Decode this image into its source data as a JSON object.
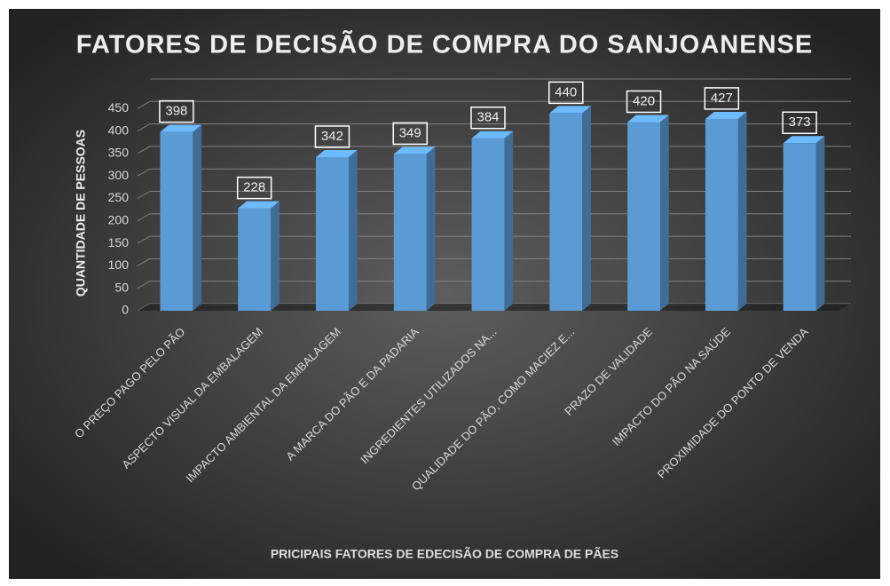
{
  "chart_data": {
    "type": "bar3d",
    "title": "FATORES DE DECISÃO DE COMPRA DO SANJOANENSE",
    "x_label": "PRICIPAIS FATORES DE EDECISÃO DE COMPRA DE PÃES",
    "y_label": "QUANTIDADE DE PESSOAS",
    "categories": [
      "O PREÇO PAGO PELO PÃO",
      "ASPECTO VISUAL DA EMBALAGEM",
      "IMPACTO AMBIENTAL DA EMBALAGEM",
      "A MARCA DO PÃO E DA PADARIA",
      "INGREDIENTES UTILIZADOS NA...",
      "QUALIDADE DO PÃO, COMO MACIEZ E...",
      "PRAZO DE VALIDADE",
      "IMPACTO DO PÃO NA SAÚDE",
      "PROXIMIDADE DO PONTO DE VENDA"
    ],
    "values": [
      398,
      228,
      342,
      349,
      384,
      440,
      420,
      427,
      373
    ],
    "color": "#5b9bd5",
    "ylim": [
      0,
      500
    ],
    "yticks": [
      0,
      50,
      100,
      150,
      200,
      250,
      300,
      350,
      400,
      450
    ],
    "grid": true
  }
}
